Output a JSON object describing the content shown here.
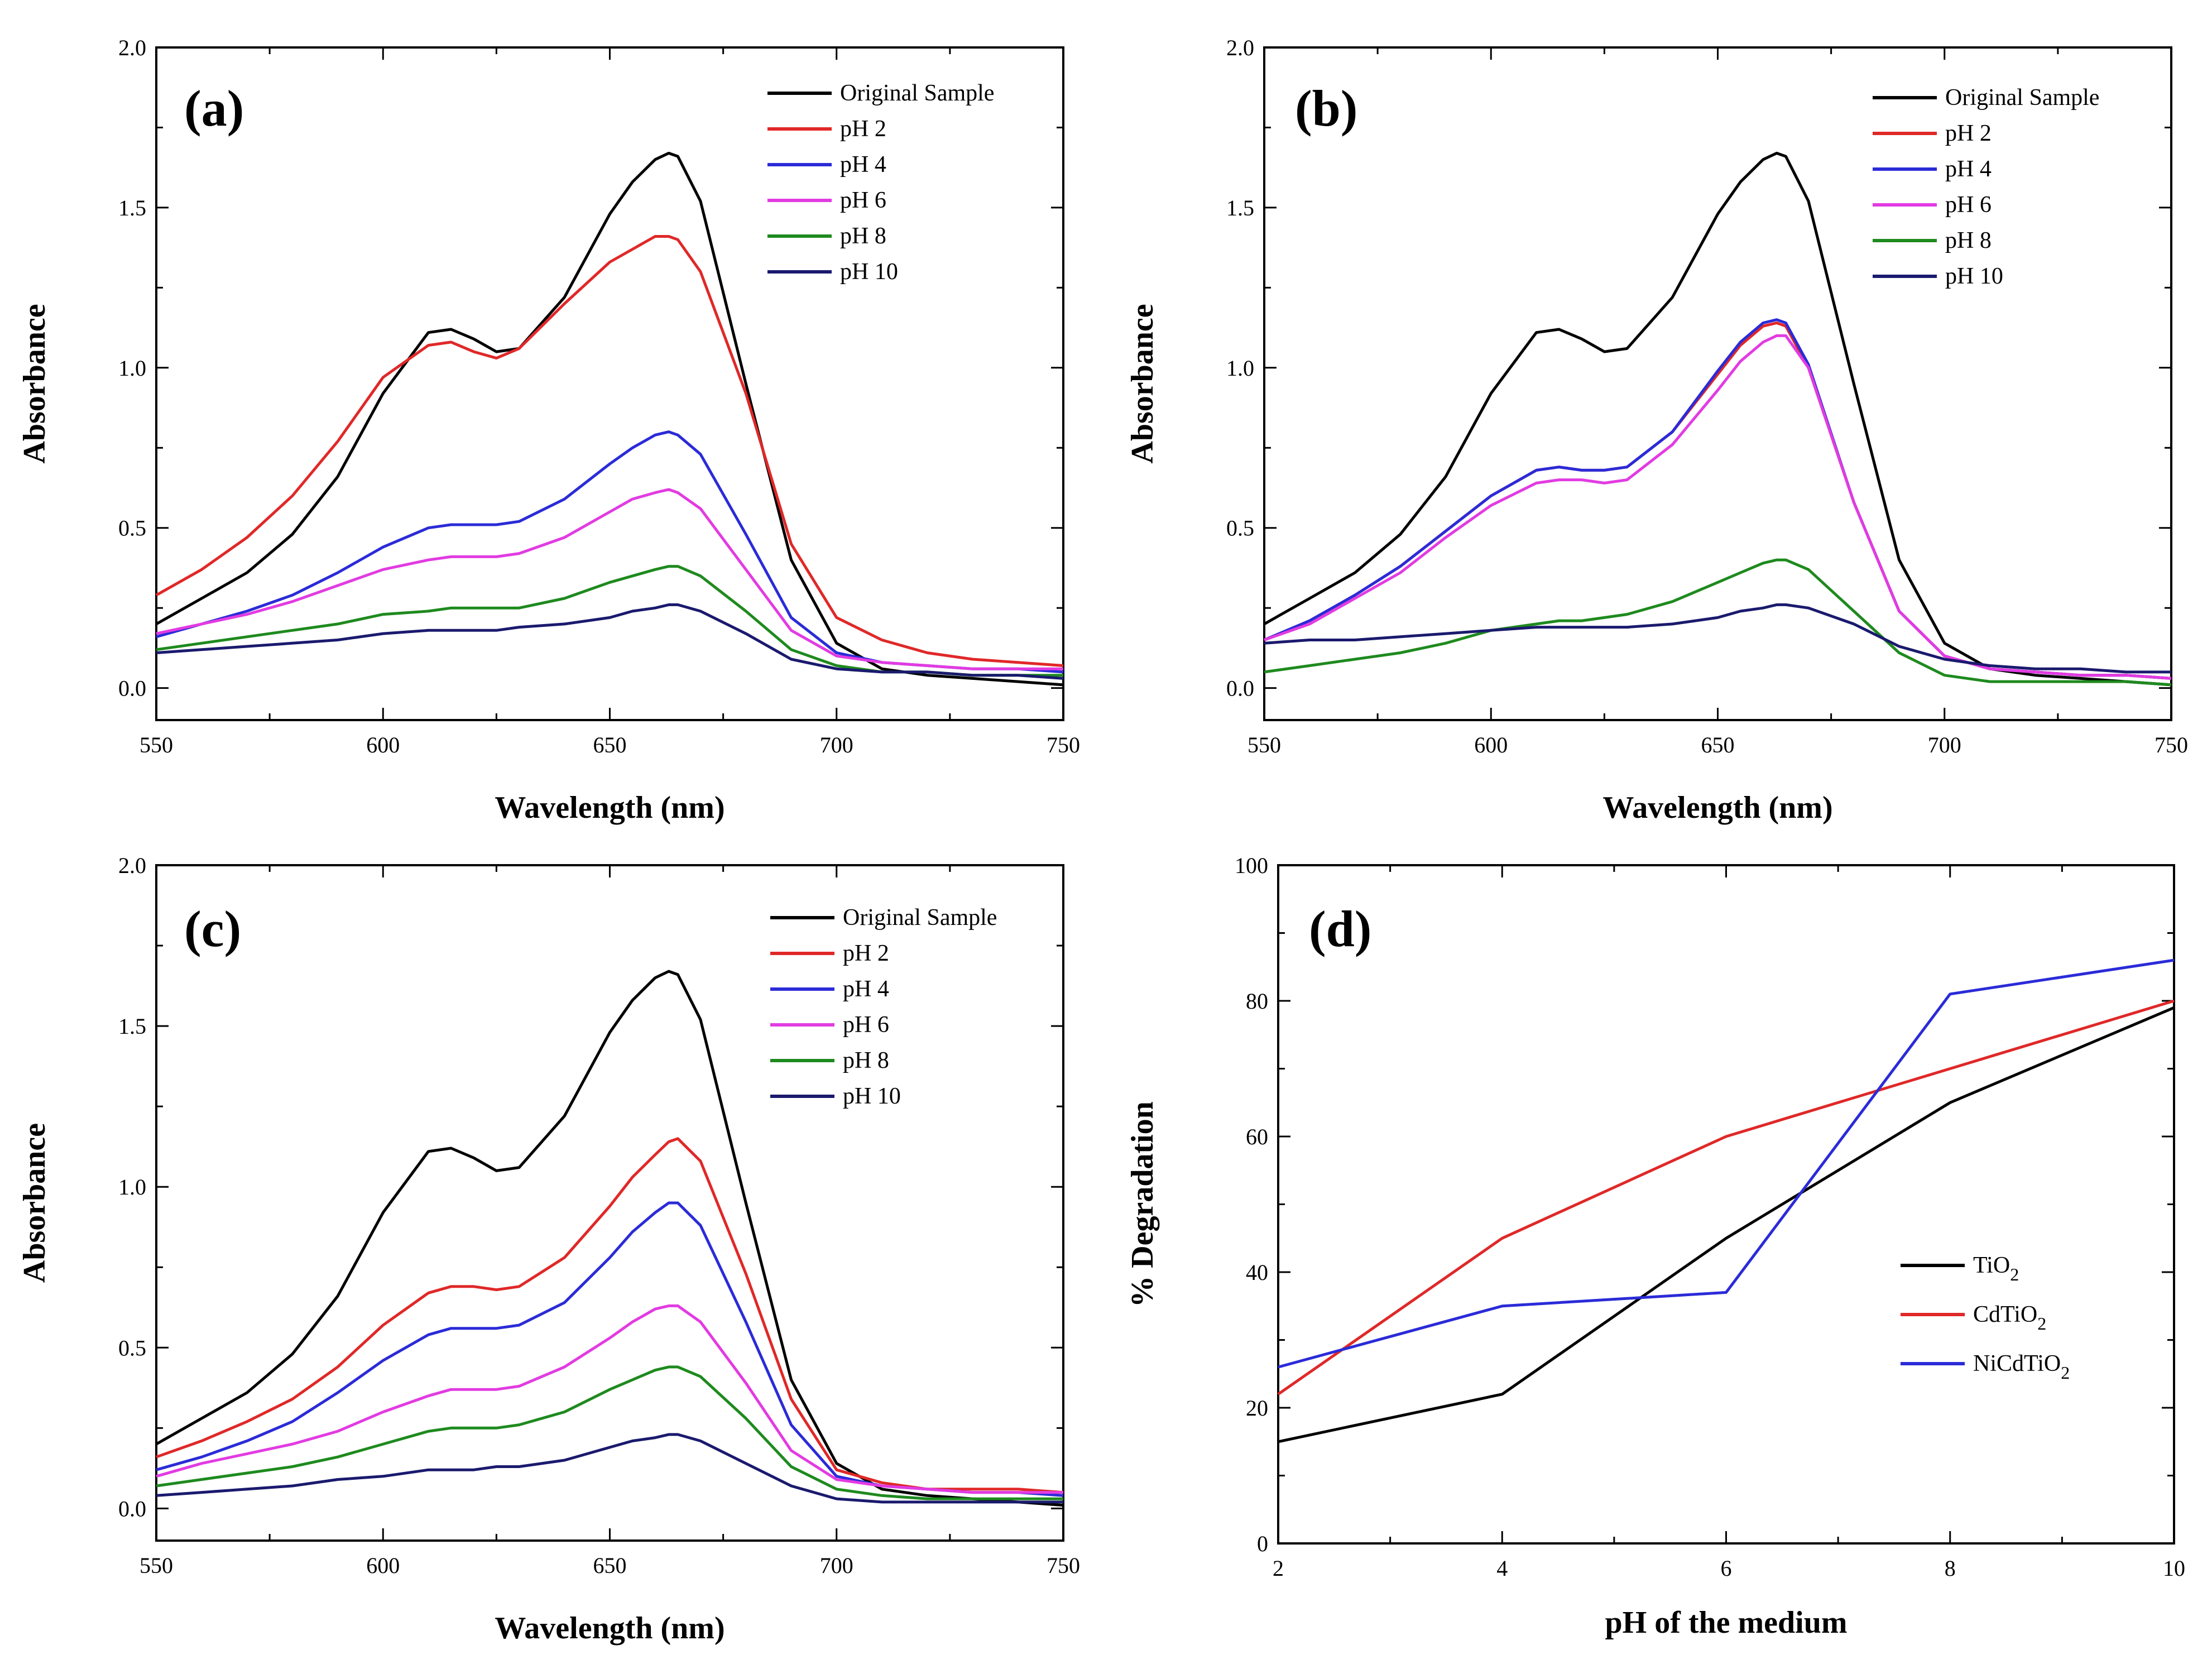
{
  "chart_data": [
    {
      "id": "a",
      "panel_label": "(a)",
      "type": "line",
      "xlabel": "Wavelength (nm)",
      "ylabel": "Absorbance",
      "xlim": [
        550,
        750
      ],
      "ylim": [
        -0.1,
        2.0
      ],
      "xticks": [
        550,
        600,
        650,
        700,
        750
      ],
      "yticks": [
        0.0,
        0.5,
        1.0,
        1.5,
        2.0
      ],
      "xtick_labels": [
        "550",
        "600",
        "650",
        "700",
        "750"
      ],
      "ytick_labels": [
        "0.0",
        "0.5",
        "1.0",
        "1.5",
        "2.0"
      ],
      "legend_position": "top-right",
      "x": [
        550,
        560,
        570,
        580,
        590,
        600,
        610,
        615,
        620,
        625,
        630,
        640,
        650,
        655,
        660,
        663,
        665,
        670,
        680,
        690,
        700,
        710,
        720,
        730,
        740,
        750
      ],
      "series": [
        {
          "name": "Original Sample",
          "color": "#000000",
          "values": [
            0.2,
            0.28,
            0.36,
            0.48,
            0.66,
            0.92,
            1.11,
            1.12,
            1.09,
            1.05,
            1.06,
            1.22,
            1.48,
            1.58,
            1.65,
            1.67,
            1.66,
            1.52,
            0.95,
            0.4,
            0.14,
            0.06,
            0.04,
            0.03,
            0.02,
            0.01
          ]
        },
        {
          "name": "pH 2",
          "color": "#e02828",
          "values": [
            0.29,
            0.37,
            0.47,
            0.6,
            0.77,
            0.97,
            1.07,
            1.08,
            1.05,
            1.03,
            1.06,
            1.2,
            1.33,
            1.37,
            1.41,
            1.41,
            1.4,
            1.3,
            0.92,
            0.45,
            0.22,
            0.15,
            0.11,
            0.09,
            0.08,
            0.07
          ]
        },
        {
          "name": "pH 4",
          "color": "#2b2bd8",
          "values": [
            0.16,
            0.2,
            0.24,
            0.29,
            0.36,
            0.44,
            0.5,
            0.51,
            0.51,
            0.51,
            0.52,
            0.59,
            0.7,
            0.75,
            0.79,
            0.8,
            0.79,
            0.73,
            0.48,
            0.22,
            0.11,
            0.08,
            0.07,
            0.06,
            0.06,
            0.05
          ]
        },
        {
          "name": "pH 6",
          "color": "#e23be2",
          "values": [
            0.17,
            0.2,
            0.23,
            0.27,
            0.32,
            0.37,
            0.4,
            0.41,
            0.41,
            0.41,
            0.42,
            0.47,
            0.55,
            0.59,
            0.61,
            0.62,
            0.61,
            0.56,
            0.37,
            0.18,
            0.1,
            0.08,
            0.07,
            0.06,
            0.06,
            0.06
          ]
        },
        {
          "name": "pH 8",
          "color": "#1e8a1e",
          "values": [
            0.12,
            0.14,
            0.16,
            0.18,
            0.2,
            0.23,
            0.24,
            0.25,
            0.25,
            0.25,
            0.25,
            0.28,
            0.33,
            0.35,
            0.37,
            0.38,
            0.38,
            0.35,
            0.24,
            0.12,
            0.07,
            0.05,
            0.05,
            0.04,
            0.04,
            0.04
          ]
        },
        {
          "name": "pH 10",
          "color": "#1a1a6e",
          "values": [
            0.11,
            0.12,
            0.13,
            0.14,
            0.15,
            0.17,
            0.18,
            0.18,
            0.18,
            0.18,
            0.19,
            0.2,
            0.22,
            0.24,
            0.25,
            0.26,
            0.26,
            0.24,
            0.17,
            0.09,
            0.06,
            0.05,
            0.05,
            0.04,
            0.04,
            0.03
          ]
        }
      ]
    },
    {
      "id": "b",
      "panel_label": "(b)",
      "type": "line",
      "xlabel": "Wavelength (nm)",
      "ylabel": "Absorbance",
      "xlim": [
        550,
        750
      ],
      "ylim": [
        -0.1,
        2.0
      ],
      "xticks": [
        550,
        600,
        650,
        700,
        750
      ],
      "yticks": [
        0.0,
        0.5,
        1.0,
        1.5,
        2.0
      ],
      "xtick_labels": [
        "550",
        "600",
        "650",
        "700",
        "750"
      ],
      "ytick_labels": [
        "0.0",
        "0.5",
        "1.0",
        "1.5",
        "2.0"
      ],
      "legend_position": "top-right",
      "x": [
        550,
        560,
        570,
        580,
        590,
        600,
        610,
        615,
        620,
        625,
        630,
        640,
        650,
        655,
        660,
        663,
        665,
        670,
        680,
        690,
        700,
        710,
        720,
        730,
        740,
        750
      ],
      "series": [
        {
          "name": "Original Sample",
          "color": "#000000",
          "values": [
            0.2,
            0.28,
            0.36,
            0.48,
            0.66,
            0.92,
            1.11,
            1.12,
            1.09,
            1.05,
            1.06,
            1.22,
            1.48,
            1.58,
            1.65,
            1.67,
            1.66,
            1.52,
            0.95,
            0.4,
            0.14,
            0.06,
            0.04,
            0.03,
            0.02,
            0.01
          ]
        },
        {
          "name": "pH 2",
          "color": "#e02828",
          "values": [
            0.15,
            0.21,
            0.29,
            0.38,
            0.49,
            0.6,
            0.68,
            0.69,
            0.68,
            0.68,
            0.69,
            0.8,
            0.98,
            1.07,
            1.13,
            1.14,
            1.13,
            1.0,
            0.58,
            0.24,
            0.1,
            0.06,
            0.05,
            0.04,
            0.04,
            0.03
          ]
        },
        {
          "name": "pH 4",
          "color": "#2b2bd8",
          "values": [
            0.15,
            0.21,
            0.29,
            0.38,
            0.49,
            0.6,
            0.68,
            0.69,
            0.68,
            0.68,
            0.69,
            0.8,
            0.99,
            1.08,
            1.14,
            1.15,
            1.14,
            1.01,
            0.58,
            0.24,
            0.1,
            0.06,
            0.05,
            0.04,
            0.04,
            0.03
          ]
        },
        {
          "name": "pH 6",
          "color": "#e23be2",
          "values": [
            0.15,
            0.2,
            0.28,
            0.36,
            0.47,
            0.57,
            0.64,
            0.65,
            0.65,
            0.64,
            0.65,
            0.76,
            0.93,
            1.02,
            1.08,
            1.1,
            1.1,
            1.0,
            0.58,
            0.24,
            0.1,
            0.06,
            0.05,
            0.04,
            0.04,
            0.03
          ]
        },
        {
          "name": "pH 8",
          "color": "#1e8a1e",
          "values": [
            0.05,
            0.07,
            0.09,
            0.11,
            0.14,
            0.18,
            0.2,
            0.21,
            0.21,
            0.22,
            0.23,
            0.27,
            0.33,
            0.36,
            0.39,
            0.4,
            0.4,
            0.37,
            0.24,
            0.11,
            0.04,
            0.02,
            0.02,
            0.02,
            0.02,
            0.01
          ]
        },
        {
          "name": "pH 10",
          "color": "#1a1a6e",
          "values": [
            0.14,
            0.15,
            0.15,
            0.16,
            0.17,
            0.18,
            0.19,
            0.19,
            0.19,
            0.19,
            0.19,
            0.2,
            0.22,
            0.24,
            0.25,
            0.26,
            0.26,
            0.25,
            0.2,
            0.13,
            0.09,
            0.07,
            0.06,
            0.06,
            0.05,
            0.05
          ]
        }
      ]
    },
    {
      "id": "c",
      "panel_label": "(c)",
      "type": "line",
      "xlabel": "Wavelength (nm)",
      "ylabel": "Absorbance",
      "xlim": [
        550,
        750
      ],
      "ylim": [
        -0.1,
        2.0
      ],
      "xticks": [
        550,
        600,
        650,
        700,
        750
      ],
      "yticks": [
        0.0,
        0.5,
        1.0,
        1.5,
        2.0
      ],
      "xtick_labels": [
        "550",
        "600",
        "650",
        "700",
        "750"
      ],
      "ytick_labels": [
        "0.0",
        "0.5",
        "1.0",
        "1.5",
        "2.0"
      ],
      "legend_position": "top-right",
      "x": [
        550,
        560,
        570,
        580,
        590,
        600,
        610,
        615,
        620,
        625,
        630,
        640,
        650,
        655,
        660,
        663,
        665,
        670,
        680,
        690,
        700,
        710,
        720,
        730,
        740,
        750
      ],
      "series": [
        {
          "name": "Original Sample",
          "color": "#000000",
          "values": [
            0.2,
            0.28,
            0.36,
            0.48,
            0.66,
            0.92,
            1.11,
            1.12,
            1.09,
            1.05,
            1.06,
            1.22,
            1.48,
            1.58,
            1.65,
            1.67,
            1.66,
            1.52,
            0.95,
            0.4,
            0.14,
            0.06,
            0.04,
            0.03,
            0.02,
            0.01
          ]
        },
        {
          "name": "pH 2",
          "color": "#e02828",
          "values": [
            0.16,
            0.21,
            0.27,
            0.34,
            0.44,
            0.57,
            0.67,
            0.69,
            0.69,
            0.68,
            0.69,
            0.78,
            0.94,
            1.03,
            1.1,
            1.14,
            1.15,
            1.08,
            0.73,
            0.34,
            0.12,
            0.08,
            0.06,
            0.06,
            0.06,
            0.05
          ]
        },
        {
          "name": "pH 4",
          "color": "#2b2bd8",
          "values": [
            0.12,
            0.16,
            0.21,
            0.27,
            0.36,
            0.46,
            0.54,
            0.56,
            0.56,
            0.56,
            0.57,
            0.64,
            0.78,
            0.86,
            0.92,
            0.95,
            0.95,
            0.88,
            0.58,
            0.26,
            0.1,
            0.07,
            0.06,
            0.05,
            0.05,
            0.04
          ]
        },
        {
          "name": "pH 6",
          "color": "#e23be2",
          "values": [
            0.1,
            0.14,
            0.17,
            0.2,
            0.24,
            0.3,
            0.35,
            0.37,
            0.37,
            0.37,
            0.38,
            0.44,
            0.53,
            0.58,
            0.62,
            0.63,
            0.63,
            0.58,
            0.39,
            0.18,
            0.09,
            0.07,
            0.06,
            0.05,
            0.05,
            0.05
          ]
        },
        {
          "name": "pH 8",
          "color": "#1e8a1e",
          "values": [
            0.07,
            0.09,
            0.11,
            0.13,
            0.16,
            0.2,
            0.24,
            0.25,
            0.25,
            0.25,
            0.26,
            0.3,
            0.37,
            0.4,
            0.43,
            0.44,
            0.44,
            0.41,
            0.28,
            0.13,
            0.06,
            0.04,
            0.03,
            0.03,
            0.03,
            0.03
          ]
        },
        {
          "name": "pH 10",
          "color": "#1a1a6e",
          "values": [
            0.04,
            0.05,
            0.06,
            0.07,
            0.09,
            0.1,
            0.12,
            0.12,
            0.12,
            0.13,
            0.13,
            0.15,
            0.19,
            0.21,
            0.22,
            0.23,
            0.23,
            0.21,
            0.14,
            0.07,
            0.03,
            0.02,
            0.02,
            0.02,
            0.02,
            0.02
          ]
        }
      ]
    },
    {
      "id": "d",
      "panel_label": "(d)",
      "type": "line",
      "xlabel": "pH of the medium",
      "ylabel": "% Degradation",
      "xlim": [
        2,
        10
      ],
      "ylim": [
        0,
        100
      ],
      "xticks": [
        2,
        4,
        6,
        8,
        10
      ],
      "yticks": [
        0,
        20,
        40,
        60,
        80,
        100
      ],
      "xtick_labels": [
        "2",
        "4",
        "6",
        "8",
        "10"
      ],
      "ytick_labels": [
        "0",
        "20",
        "40",
        "60",
        "80",
        "100"
      ],
      "legend_position": "center-right",
      "x": [
        2,
        4,
        6,
        8,
        10
      ],
      "series": [
        {
          "name": "TiO",
          "subscript": "2",
          "color": "#000000",
          "values": [
            15,
            22,
            45,
            65,
            79
          ]
        },
        {
          "name": "CdTiO",
          "subscript": "2",
          "color": "#e02828",
          "values": [
            22,
            45,
            60,
            70,
            80
          ]
        },
        {
          "name": "NiCdTiO",
          "subscript": "2",
          "color": "#2b2bd8",
          "values": [
            26,
            35,
            37,
            81,
            86
          ]
        }
      ]
    }
  ]
}
